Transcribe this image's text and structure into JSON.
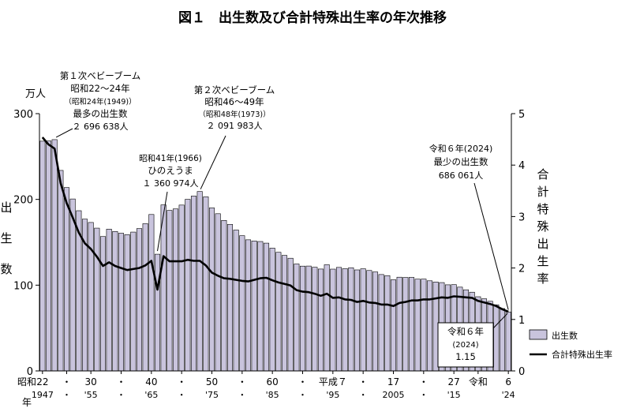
{
  "chart_data": {
    "type": "bar+line",
    "title": "図１　出生数及び合計特殊出生率の年次推移",
    "left_axis": {
      "unit": "万人",
      "label": [
        "出",
        "生",
        "数"
      ],
      "ylim": [
        0,
        300
      ],
      "ticks": [
        0,
        100,
        200,
        300
      ]
    },
    "right_axis": {
      "label": [
        "合",
        "計",
        "特",
        "殊",
        "出",
        "生",
        "率"
      ],
      "ylim": [
        0,
        5
      ],
      "ticks": [
        0,
        1,
        2,
        3,
        4,
        5
      ]
    },
    "x_range": [
      1947,
      2024
    ],
    "x_ticks": [
      {
        "year": 1947,
        "top": "22",
        "bottom": "1947"
      },
      {
        "year": 1951,
        "top": "・",
        "bottom": "・"
      },
      {
        "year": 1955,
        "top": "30",
        "bottom": "'55"
      },
      {
        "year": 1960,
        "top": "・",
        "bottom": "・"
      },
      {
        "year": 1965,
        "top": "40",
        "bottom": "'65"
      },
      {
        "year": 1970,
        "top": "・",
        "bottom": "・"
      },
      {
        "year": 1975,
        "top": "50",
        "bottom": "'75"
      },
      {
        "year": 1980,
        "top": "・",
        "bottom": "・"
      },
      {
        "year": 1985,
        "top": "60",
        "bottom": "'85"
      },
      {
        "year": 1990,
        "top": "・",
        "bottom": "・"
      },
      {
        "year": 1995,
        "top": "平成７",
        "bottom": "'95"
      },
      {
        "year": 2000,
        "top": "・",
        "bottom": "・"
      },
      {
        "year": 2005,
        "top": "17",
        "bottom": "2005"
      },
      {
        "year": 2010,
        "top": "・",
        "bottom": "・"
      },
      {
        "year": 2015,
        "top": "27",
        "bottom": "'15"
      },
      {
        "year": 2019,
        "top": "令和",
        "bottom": ""
      },
      {
        "year": 2024,
        "top": "6",
        "bottom": "'24"
      }
    ],
    "x_corner_labels": {
      "era": "昭和",
      "year": "年"
    },
    "years": [
      1947,
      1948,
      1949,
      1950,
      1951,
      1952,
      1953,
      1954,
      1955,
      1956,
      1957,
      1958,
      1959,
      1960,
      1961,
      1962,
      1963,
      1964,
      1965,
      1966,
      1967,
      1968,
      1969,
      1970,
      1971,
      1972,
      1973,
      1974,
      1975,
      1976,
      1977,
      1978,
      1979,
      1980,
      1981,
      1982,
      1983,
      1984,
      1985,
      1986,
      1987,
      1988,
      1989,
      1990,
      1991,
      1992,
      1993,
      1994,
      1995,
      1996,
      1997,
      1998,
      1999,
      2000,
      2001,
      2002,
      2003,
      2004,
      2005,
      2006,
      2007,
      2008,
      2009,
      2010,
      2011,
      2012,
      2013,
      2014,
      2015,
      2016,
      2017,
      2018,
      2019,
      2020,
      2021,
      2022,
      2023,
      2024
    ],
    "series": [
      {
        "name": "出生数",
        "type": "bar",
        "axis": "left",
        "values": [
          267.9,
          268.2,
          269.7,
          233.8,
          213.8,
          200.5,
          186.8,
          177.0,
          173.1,
          166.5,
          156.7,
          165.3,
          162.6,
          160.6,
          158.9,
          161.9,
          166.0,
          171.7,
          182.4,
          136.1,
          193.6,
          187.2,
          188.9,
          193.4,
          200.1,
          203.9,
          209.2,
          203.0,
          190.1,
          183.3,
          175.5,
          170.9,
          164.3,
          157.7,
          152.9,
          151.5,
          150.9,
          149.0,
          143.2,
          138.3,
          134.7,
          131.4,
          124.7,
          122.2,
          122.3,
          120.9,
          118.8,
          123.8,
          118.7,
          120.7,
          119.2,
          120.3,
          117.8,
          119.1,
          117.1,
          115.4,
          112.4,
          111.1,
          106.3,
          109.3,
          109.0,
          109.1,
          107.0,
          107.1,
          105.1,
          103.7,
          103.0,
          100.4,
          100.6,
          97.7,
          94.6,
          91.8,
          86.5,
          84.1,
          81.2,
          77.1,
          72.7,
          68.6
        ],
        "color": "#c9c4dd"
      },
      {
        "name": "合計特殊出生率",
        "type": "line",
        "axis": "right",
        "values": [
          4.54,
          4.4,
          4.32,
          3.65,
          3.26,
          2.98,
          2.69,
          2.48,
          2.37,
          2.22,
          2.04,
          2.11,
          2.04,
          2.0,
          1.96,
          1.98,
          2.0,
          2.05,
          2.14,
          1.58,
          2.23,
          2.13,
          2.13,
          2.13,
          2.16,
          2.14,
          2.14,
          2.05,
          1.91,
          1.85,
          1.8,
          1.79,
          1.77,
          1.75,
          1.74,
          1.77,
          1.8,
          1.81,
          1.76,
          1.72,
          1.69,
          1.66,
          1.57,
          1.54,
          1.53,
          1.5,
          1.46,
          1.5,
          1.42,
          1.43,
          1.39,
          1.38,
          1.34,
          1.36,
          1.33,
          1.32,
          1.29,
          1.29,
          1.26,
          1.32,
          1.34,
          1.37,
          1.37,
          1.39,
          1.39,
          1.41,
          1.43,
          1.42,
          1.45,
          1.44,
          1.43,
          1.42,
          1.36,
          1.33,
          1.3,
          1.26,
          1.2,
          1.15
        ],
        "color": "#000000"
      }
    ],
    "legend": [
      "出生数",
      "合計特殊出生率"
    ],
    "annotations": {
      "boom1": {
        "lines": [
          "第１次ベビーブーム",
          "昭和22～24年",
          "（昭和24年(1949)）",
          "最多の出生数",
          "２ 696 638人"
        ],
        "year": 1949,
        "value": 269.7
      },
      "hinoe": {
        "lines": [
          "昭和41年(1966)",
          "ひのえうま",
          "１ 360 974人"
        ],
        "year": 1966,
        "value": 136.1
      },
      "boom2": {
        "lines": [
          "第２次ベビーブーム",
          "昭和46～49年",
          "（昭和48年(1973)）",
          "２ 091 983人"
        ],
        "year": 1973,
        "value": 209.2
      },
      "min_births": {
        "lines": [
          "令和６年(2024)",
          "最少の出生数",
          "686 061人"
        ],
        "year": 2024,
        "value": 68.6
      },
      "min_tfr": {
        "lines": [
          "令和６年",
          "(2024)",
          "1.15"
        ],
        "year": 2024,
        "value": 1.15
      }
    }
  }
}
